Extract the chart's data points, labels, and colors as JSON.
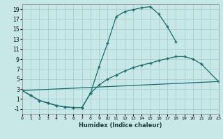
{
  "background_color": "#c8e8e8",
  "grid_color": "#a8cece",
  "line_color": "#1a6b6b",
  "xlabel": "Humidex (Indice chaleur)",
  "xlim": [
    0,
    23
  ],
  "ylim": [
    -2,
    20
  ],
  "xticks": [
    0,
    1,
    2,
    3,
    4,
    5,
    6,
    7,
    8,
    9,
    10,
    11,
    12,
    13,
    14,
    15,
    16,
    17,
    18,
    19,
    20,
    21,
    22,
    23
  ],
  "yticks": [
    -1,
    1,
    3,
    5,
    7,
    9,
    11,
    13,
    15,
    17,
    19
  ],
  "curve1_x": [
    0,
    1,
    2,
    3,
    4,
    5,
    6,
    7,
    8,
    9,
    10,
    11,
    12,
    13,
    14,
    15,
    16,
    17,
    18
  ],
  "curve1_y": [
    2.7,
    1.7,
    0.7,
    0.2,
    -0.3,
    -0.6,
    -0.7,
    -0.7,
    2.2,
    7.5,
    12.2,
    17.5,
    18.5,
    18.9,
    19.3,
    19.5,
    18.0,
    15.5,
    12.5
  ],
  "curve2_x": [
    0,
    1,
    2,
    3,
    4,
    5,
    6,
    7,
    8,
    9,
    10,
    11,
    12,
    13,
    14,
    15,
    16,
    17,
    18,
    19,
    20,
    21,
    23
  ],
  "curve2_y": [
    2.7,
    1.7,
    0.7,
    0.2,
    -0.3,
    -0.6,
    -0.7,
    -0.7,
    2.2,
    3.8,
    5.0,
    5.8,
    6.6,
    7.3,
    7.8,
    8.2,
    8.7,
    9.1,
    9.5,
    9.5,
    9.0,
    8.0,
    4.5
  ],
  "curve3_x": [
    0,
    23
  ],
  "curve3_y": [
    2.7,
    4.5
  ],
  "xlabel_fontsize": 6.0,
  "tick_fontsize_x": 4.5,
  "tick_fontsize_y": 5.5
}
